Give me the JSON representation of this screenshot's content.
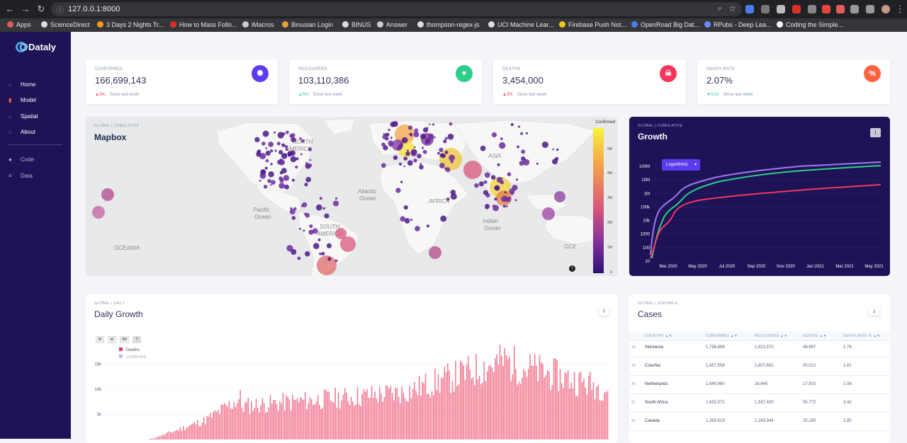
{
  "browser": {
    "url": "127.0.0.1:8000",
    "bookmarks": [
      "Apps",
      "ScienceDirect",
      "3 Days 2 Nights Tr...",
      "How to Mass Follo...",
      "iMacros",
      "Binusian Login",
      "BINUS",
      "Answer",
      "thompson-regex-js",
      "UCI Machine Lear...",
      "Firebase Push Not...",
      "OpenRoad Big Dat...",
      "RPubs - Deep Lea...",
      "Coding the Simple..."
    ]
  },
  "sidebar": {
    "brand": "Dataly",
    "items": [
      {
        "label": "Home",
        "icon": "home-icon"
      },
      {
        "label": "Model",
        "icon": "chart-icon"
      },
      {
        "label": "Spatial",
        "icon": "globe-icon"
      },
      {
        "label": "About",
        "icon": "home-icon"
      },
      {
        "label": "Code",
        "icon": "github-icon"
      },
      {
        "label": "Data",
        "icon": "database-icon"
      }
    ]
  },
  "stats": [
    {
      "label": "CONFIRMED",
      "value": "166,699,143",
      "change": "3%",
      "change_dir": "up",
      "change_color": "#f5365c",
      "since": "Since last week",
      "icon": "virus-icon",
      "icon_bg": "#5e3bee"
    },
    {
      "label": "RECOVERED",
      "value": "103,110,386",
      "change": "5%",
      "change_dir": "up",
      "change_color": "#2dce89",
      "since": "Since last week",
      "icon": "heart-icon",
      "icon_bg": "#2dce89"
    },
    {
      "label": "DEATHS",
      "value": "3,454,000",
      "change": "3%",
      "change_dir": "up",
      "change_color": "#f5365c",
      "since": "Since last week",
      "icon": "skull-icon",
      "icon_bg": "#f5365c"
    },
    {
      "label": "DEATH RATE",
      "value": "2.07%",
      "change": "0.01",
      "change_dir": "down",
      "change_color": "#2dce89",
      "since": "Since last week",
      "icon": "percent-icon",
      "icon_bg": "#fb6340"
    }
  ],
  "map": {
    "tag": "GLOBAL | CUMULATIVE",
    "title": "Mapbox",
    "legend_title": "Confirmed",
    "legend_ticks": [
      "5M",
      "4M",
      "3M",
      "2M",
      "1M",
      "0"
    ],
    "labels": [
      "NORTH AMERICA",
      "Atlantic Ocean",
      "Pacific Ocean",
      "SOUTH AMERICA",
      "AFRICA",
      "ASIA",
      "Indian Ocean",
      "OCEANIA",
      "OCE"
    ]
  },
  "growth": {
    "tag": "GLOBAL | CUMULATIVE",
    "title": "Growth",
    "scale_button": "Logarithmic",
    "colors": {
      "confirmed": "#9f7aea",
      "recovered": "#2dce89",
      "deaths": "#f5365c"
    }
  },
  "daily": {
    "tag": "GLOBAL | DAILY",
    "title": "Daily Growth",
    "ranges": [
      "W",
      "M",
      "3M",
      "T"
    ],
    "active_range": "T",
    "legend": [
      {
        "name": "Deaths",
        "color": "#f5365c"
      },
      {
        "name": "Confirmed",
        "color": "#c8b6f5"
      }
    ]
  },
  "cases": {
    "tag": "GLOBAL | SORTABLE",
    "title": "Cases",
    "columns": [
      "COUNTRY ▲▼",
      "CONFIRMED ▲▼",
      "RECOVERED ▲▼",
      "DEATHS ▲▼",
      "DEATH RATE % ▲▼"
    ],
    "rows": [
      {
        "rank": "18",
        "country": "Indonesia",
        "confirmed": "1,758,898",
        "recovered": "1,621,572",
        "deaths": "48,887",
        "rate": "2.78"
      },
      {
        "rank": "19",
        "country": "Czechia",
        "confirmed": "1,657,558",
        "recovered": "1,607,681",
        "deaths": "30,012",
        "rate": "1.81"
      },
      {
        "rank": "20",
        "country": "Netherlands",
        "confirmed": "1,649,960",
        "recovered": "26,645",
        "deaths": "17,810",
        "rate": "1.08"
      },
      {
        "rank": "21",
        "country": "South Africa",
        "confirmed": "1,632,571",
        "recovered": "1,537,430",
        "deaths": "55,772",
        "rate": "3.42"
      },
      {
        "rank": "22",
        "country": "Canada",
        "confirmed": "1,363,519",
        "recovered": "1,283,944",
        "deaths": "25,180",
        "rate": "1.85"
      }
    ]
  },
  "chart_data": [
    {
      "type": "line",
      "title": "Growth",
      "yscale": "log",
      "y_ticks": [
        "10",
        "100",
        "1000",
        "10k",
        "100k",
        "1M",
        "10M",
        "100M"
      ],
      "x_ticks": [
        "Mar 2020",
        "May 2020",
        "Jul 2020",
        "Sep 2020",
        "Nov 2020",
        "Jan 2021",
        "Mar 2021",
        "May 2021"
      ],
      "x": [
        "Feb 2020",
        "Mar 2020",
        "Apr 2020",
        "May 2020",
        "Jun 2020",
        "Jul 2020",
        "Sep 2020",
        "Nov 2020",
        "Jan 2021",
        "Mar 2021",
        "May 2021"
      ],
      "series": []
    },
    {
      "type": "bar",
      "title": "Daily Growth",
      "y_ticks": [
        "5k",
        "10k",
        "15k"
      ],
      "ylim": [
        0,
        18000
      ],
      "series": [
        {
          "name": "Deaths"
        },
        {
          "name": "Confirmed"
        }
      ]
    }
  ]
}
